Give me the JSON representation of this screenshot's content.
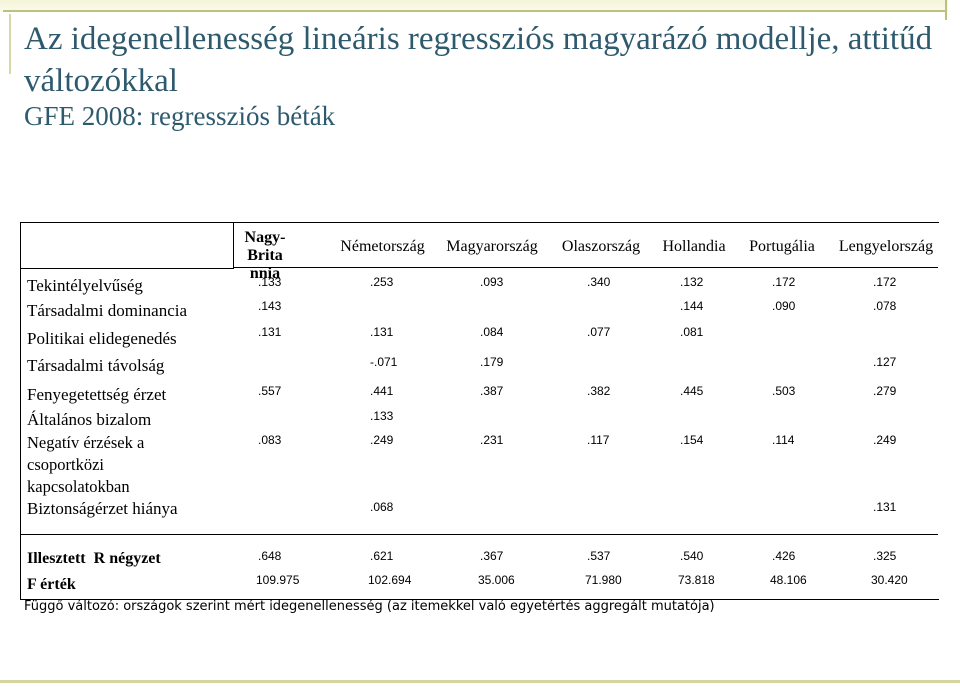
{
  "title": "Az idegenellenesség lineáris regressziós magyarázó modellje, attitűd változókkal",
  "subtitle": "GFE 2008: regressziós béták",
  "table": {
    "columns": [
      "Nagy-Britannia",
      "Németország",
      "Magyarország",
      "Olaszország",
      "Hollandia",
      "Portugália",
      "Lengyelország"
    ],
    "rows": [
      {
        "label": "Tekintélyelvűség",
        "values": [
          ".133",
          ".253",
          ".093",
          ".340",
          ".132",
          ".172",
          ".172"
        ]
      },
      {
        "label": "Társadalmi dominancia",
        "values": [
          ".143",
          "",
          "",
          "",
          ".144",
          ".090",
          ".078"
        ]
      },
      {
        "label": "Politikai elidegenedés",
        "values": [
          ".131",
          ".131",
          ".084",
          ".077",
          ".081",
          "",
          ""
        ]
      },
      {
        "label": "Társadalmi távolság",
        "values": [
          "",
          "-.071",
          ".179",
          "",
          "",
          "",
          ".127"
        ]
      },
      {
        "label": "Fenyegetettség érzet",
        "values": [
          ".557",
          ".441",
          ".387",
          ".382",
          ".445",
          ".503",
          ".279"
        ]
      },
      {
        "label": "Általános bizalom",
        "values": [
          "",
          ".133",
          "",
          "",
          "",
          "",
          ""
        ]
      },
      {
        "label": "Negatív érzések a csoportközi kapcsolatokban",
        "values": [
          ".083",
          ".249",
          ".231",
          ".117",
          ".154",
          ".114",
          ".249"
        ]
      },
      {
        "label": "Biztonságérzet hiánya",
        "values": [
          "",
          ".068",
          "",
          "",
          "",
          "",
          ".131"
        ]
      }
    ],
    "summary": [
      {
        "label": "Illesztett  R négyzet",
        "values": [
          ".648",
          ".621",
          ".367",
          ".537",
          ".540",
          ".426",
          ".325"
        ]
      },
      {
        "label": "F érték",
        "values": [
          "109.975",
          "102.694",
          "35.006",
          "71.980",
          "73.818",
          "48.106",
          "30.420"
        ]
      }
    ]
  },
  "footnote": "Függő változó: országok szerint mért idegenellenesség (az itemekkel való egyetértés aggregált mutatója)",
  "colors": {
    "title": "#2e5a6e",
    "rule": "#bfc07c"
  }
}
